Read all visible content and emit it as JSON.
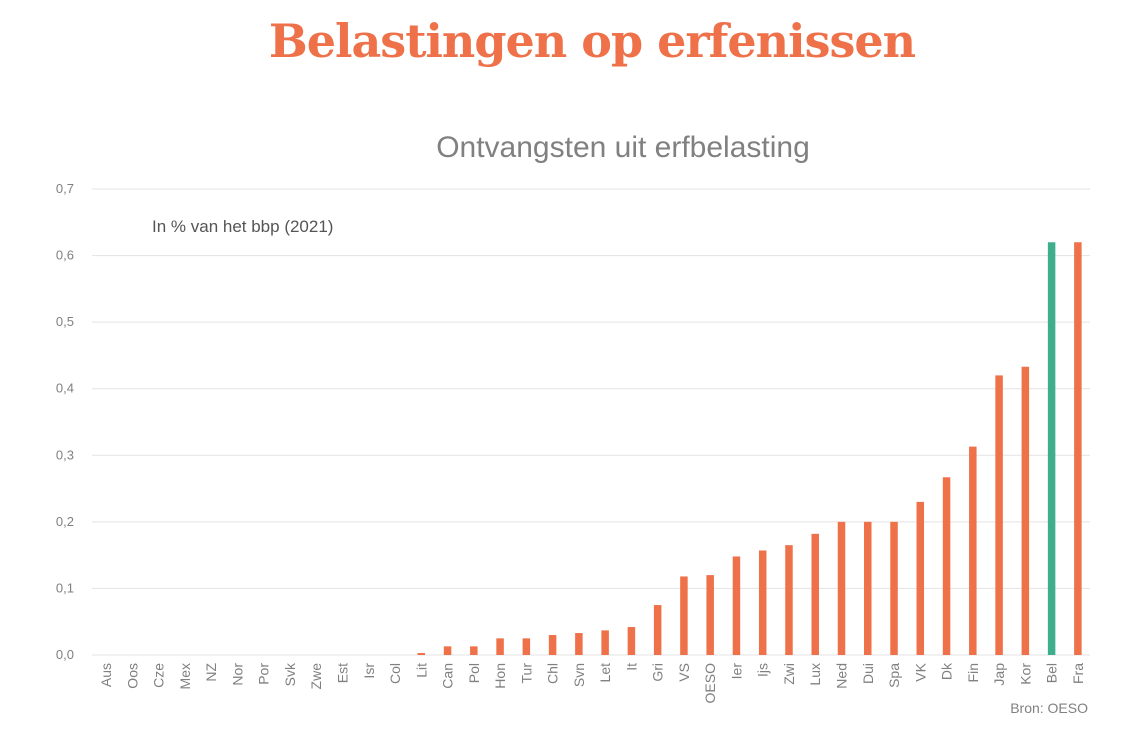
{
  "page_title": "Belastingen op erfenissen",
  "colors": {
    "title": "#ee714a",
    "bar": "#ee714a",
    "highlight": "#3fae8c",
    "grid": "#e3e3e3",
    "text": "#808080",
    "note": "#555555"
  },
  "chart_data": {
    "type": "bar",
    "title": "Ontvangsten uit erfbelasting",
    "subtitle": "In % van het bbp (2021)",
    "source": "Bron: OESO",
    "xlabel": "",
    "ylabel": "",
    "ylim": [
      0,
      0.7
    ],
    "yticks": [
      0,
      0.1,
      0.2,
      0.3,
      0.4,
      0.5,
      0.6,
      0.7
    ],
    "ytick_labels": [
      "0,0",
      "0,1",
      "0,2",
      "0,3",
      "0,4",
      "0,5",
      "0,6",
      "0,7"
    ],
    "grid": true,
    "highlight_category": "Bel",
    "categories": [
      "Aus",
      "Oos",
      "Cze",
      "Mex",
      "NZ",
      "Nor",
      "Por",
      "Svk",
      "Zwe",
      "Est",
      "Isr",
      "Col",
      "Lit",
      "Can",
      "Pol",
      "Hon",
      "Tur",
      "Chl",
      "Svn",
      "Let",
      "It",
      "Gri",
      "VS",
      "OESO",
      "Ier",
      "Ijs",
      "Zwi",
      "Lux",
      "Ned",
      "Dui",
      "Spa",
      "VK",
      "Dk",
      "Fin",
      "Jap",
      "Kor",
      "Bel",
      "Fra"
    ],
    "values": [
      0,
      0,
      0,
      0,
      0,
      0,
      0,
      0,
      0,
      0,
      0,
      0,
      0.003,
      0.013,
      0.013,
      0.025,
      0.025,
      0.03,
      0.033,
      0.037,
      0.042,
      0.075,
      0.118,
      0.12,
      0.148,
      0.157,
      0.165,
      0.182,
      0.2,
      0.2,
      0.2,
      0.23,
      0.267,
      0.313,
      0.42,
      0.433,
      0.62,
      0.62
    ]
  }
}
